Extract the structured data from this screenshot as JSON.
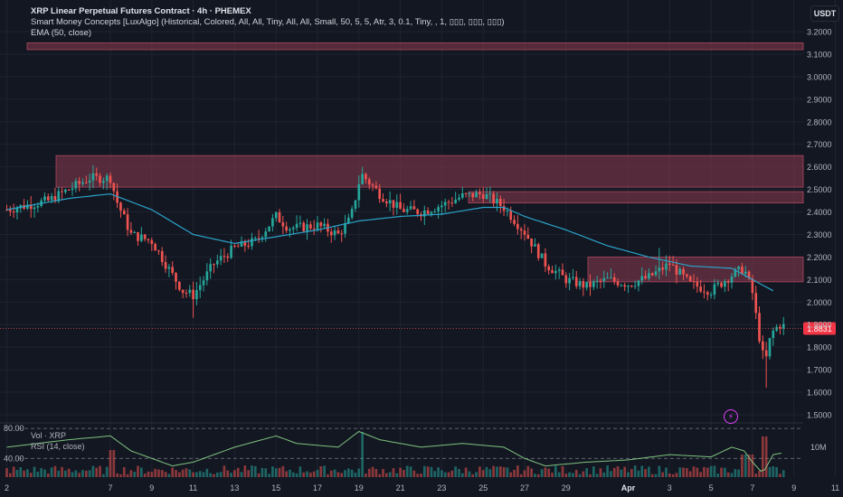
{
  "header": {
    "symbol_line": "XRP Linear Perpetual Futures Contract · 4h · PHEMEX",
    "indicator_line": "Smart Money Concepts [LuxAlgo] (Historical, Colored, All, All, Tiny, All, All, Small, 50, 5, 5, Atr, 3, 0.1, Tiny, , 1, ▯▯▯, ▯▯▯, ▯▯▯)",
    "ema_line": "EMA (50, close)",
    "currency": "USDT"
  },
  "sub_pane": {
    "vol_label": "Vol · XRP",
    "rsi_label": "RSI (14, close)",
    "vol_axis_label": "10M",
    "rsi_levels": [
      "80.00",
      "40.00"
    ]
  },
  "price_axis": {
    "ticks": [
      "3.2000",
      "3.1000",
      "3.0000",
      "2.9000",
      "2.8000",
      "2.7000",
      "2.6000",
      "2.5000",
      "2.4000",
      "2.3000",
      "2.2000",
      "2.1000",
      "2.0000",
      "1.9000",
      "1.8000",
      "1.7000",
      "1.6000",
      "1.5000"
    ],
    "current_price": "1.8831"
  },
  "time_axis": {
    "ticks": [
      "2",
      "7",
      "9",
      "11",
      "13",
      "15",
      "17",
      "19",
      "21",
      "23",
      "25",
      "27",
      "29",
      "Apr",
      "3",
      "5",
      "7",
      "9",
      "11"
    ]
  },
  "colors": {
    "bg": "#131722",
    "up": "#26a69a",
    "down": "#ef5350",
    "ema": "#2ba3c9",
    "rsi": "#7ec27e",
    "zone_fill": "#8c3a4f",
    "grid": "#1f2330",
    "price_badge": "#f23645",
    "accent_magenta": "#e040fb"
  },
  "chart_data": {
    "type": "candlestick",
    "timeframe": "4h",
    "symbol": "XRP/USDT Perp (PHEMEX)",
    "ylim": [
      1.45,
      3.25
    ],
    "current_price": 1.8831,
    "grid": true,
    "supply_zones": [
      {
        "top": 3.15,
        "bottom": 3.12
      },
      {
        "top": 2.65,
        "bottom": 2.51
      },
      {
        "top": 2.49,
        "bottom": 2.44
      },
      {
        "top": 2.2,
        "bottom": 2.09
      }
    ],
    "price_path": [
      [
        2,
        2.41
      ],
      [
        4,
        2.45
      ],
      [
        6,
        2.55
      ],
      [
        7,
        2.55
      ],
      [
        7.3,
        2.45
      ],
      [
        8,
        2.3
      ],
      [
        9,
        2.27
      ],
      [
        10,
        2.12
      ],
      [
        10.5,
        2.05
      ],
      [
        11,
        2.03
      ],
      [
        11.5,
        2.1
      ],
      [
        12,
        2.17
      ],
      [
        13,
        2.24
      ],
      [
        14,
        2.27
      ],
      [
        15,
        2.38
      ],
      [
        15.6,
        2.33
      ],
      [
        16,
        2.33
      ],
      [
        17,
        2.34
      ],
      [
        18,
        2.3
      ],
      [
        18.6,
        2.37
      ],
      [
        19.1,
        2.57
      ],
      [
        20,
        2.48
      ],
      [
        21,
        2.41
      ],
      [
        22,
        2.4
      ],
      [
        23,
        2.43
      ],
      [
        24,
        2.47
      ],
      [
        25,
        2.48
      ],
      [
        26,
        2.42
      ],
      [
        27,
        2.31
      ],
      [
        28,
        2.17
      ],
      [
        29,
        2.1
      ],
      [
        30,
        2.07
      ],
      [
        31,
        2.1
      ],
      [
        32,
        2.08
      ],
      [
        33,
        2.11
      ],
      [
        34,
        2.17
      ],
      [
        35,
        2.08
      ],
      [
        36,
        2.05
      ],
      [
        37,
        2.12
      ],
      [
        37.6,
        2.15
      ],
      [
        38,
        2.04
      ],
      [
        38.3,
        1.86
      ],
      [
        38.6,
        1.72
      ],
      [
        38.9,
        1.86
      ],
      [
        39.3,
        1.9
      ],
      [
        39.6,
        1.89
      ]
    ],
    "ema_path": [
      [
        2,
        2.41
      ],
      [
        5,
        2.46
      ],
      [
        7,
        2.48
      ],
      [
        9,
        2.41
      ],
      [
        11,
        2.3
      ],
      [
        13,
        2.26
      ],
      [
        15,
        2.29
      ],
      [
        17,
        2.32
      ],
      [
        19,
        2.36
      ],
      [
        21,
        2.38
      ],
      [
        23,
        2.39
      ],
      [
        25,
        2.42
      ],
      [
        26,
        2.42
      ],
      [
        27,
        2.38
      ],
      [
        29,
        2.32
      ],
      [
        31,
        2.25
      ],
      [
        33,
        2.2
      ],
      [
        35,
        2.16
      ],
      [
        37,
        2.15
      ],
      [
        39.2,
        2.04
      ]
    ],
    "rsi_path": [
      [
        2,
        55
      ],
      [
        5,
        65
      ],
      [
        7,
        70
      ],
      [
        8,
        50
      ],
      [
        10,
        30
      ],
      [
        11,
        35
      ],
      [
        13,
        55
      ],
      [
        15,
        70
      ],
      [
        16,
        60
      ],
      [
        18,
        55
      ],
      [
        19,
        76
      ],
      [
        20,
        65
      ],
      [
        22,
        55
      ],
      [
        24,
        60
      ],
      [
        26,
        55
      ],
      [
        27,
        40
      ],
      [
        28,
        30
      ],
      [
        30,
        35
      ],
      [
        32,
        38
      ],
      [
        34,
        45
      ],
      [
        36,
        42
      ],
      [
        37,
        55
      ],
      [
        37.6,
        50
      ],
      [
        38,
        35
      ],
      [
        38.5,
        20
      ],
      [
        39,
        45
      ],
      [
        39.6,
        48
      ]
    ]
  }
}
